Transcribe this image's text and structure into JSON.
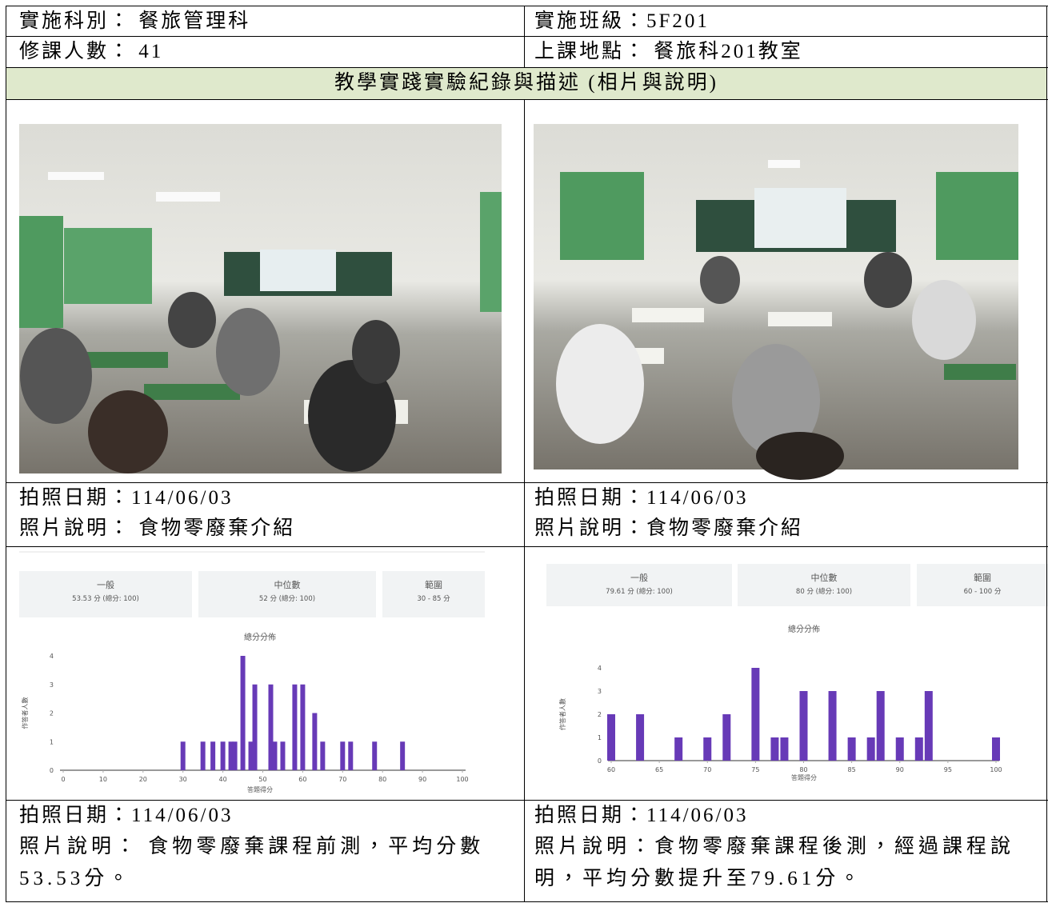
{
  "info": {
    "subject": "實施科別： 餐旅管理科",
    "class": "實施班級：5F201",
    "students": "修課人數： 41",
    "location": "上課地點： 餐旅科201教室"
  },
  "section_title": "教學實踐實驗紀錄與描述 (相片與說明)",
  "photos": [
    {
      "date": "拍照日期：114/06/03",
      "caption": "照片說明： 食物零廢棄介紹"
    },
    {
      "date": "拍照日期：114/06/03",
      "caption": "照片說明：食物零廢棄介紹"
    }
  ],
  "chart_captions": [
    {
      "date": "拍照日期：114/06/03",
      "caption": "照片說明： 食物零廢棄課程前測，平均分數53.53分。"
    },
    {
      "date": "拍照日期：114/06/03",
      "caption": "照片說明：食物零廢棄課程後測，經過課程說明，平均分數提升至79.61分。"
    }
  ],
  "chart_data": [
    {
      "type": "bar",
      "title": "總分分佈",
      "x_label": "答題得分",
      "y_label": "作答者人數",
      "stats": [
        {
          "label": "一般",
          "value": "53.53 分 (總分: 100)"
        },
        {
          "label": "中位數",
          "value": "52 分 (總分: 100)"
        },
        {
          "label": "範圍",
          "value": "30 - 85 分"
        }
      ],
      "x": [
        30,
        35,
        37.5,
        40,
        42,
        43,
        45,
        47,
        48,
        52,
        53,
        55,
        58,
        60,
        63,
        65,
        70,
        72,
        78,
        85
      ],
      "values": [
        1,
        1,
        1,
        1,
        1,
        1,
        4,
        1,
        3,
        3,
        1,
        1,
        3,
        3,
        2,
        1,
        1,
        1,
        1,
        1
      ],
      "color": "#673ab7",
      "xlim": [
        0,
        100
      ],
      "xticks": [
        0,
        10,
        20,
        30,
        40,
        50,
        60,
        70,
        80,
        90,
        100
      ],
      "ylim": [
        0,
        4
      ],
      "yticks": [
        0,
        1,
        2,
        3,
        4
      ],
      "grid": false
    },
    {
      "type": "bar",
      "title": "總分分佈",
      "x_label": "答題得分",
      "y_label": "作答者人數",
      "stats": [
        {
          "label": "一般",
          "value": "79.61 分 (總分: 100)"
        },
        {
          "label": "中位數",
          "value": "80 分 (總分: 100)"
        },
        {
          "label": "範圍",
          "value": "60 - 100 分"
        }
      ],
      "x": [
        60,
        63,
        67,
        70,
        72,
        75,
        77,
        78,
        80,
        83,
        85,
        87,
        88,
        90,
        92,
        93,
        100
      ],
      "values": [
        2,
        2,
        1,
        1,
        2,
        4,
        1,
        1,
        3,
        3,
        1,
        1,
        3,
        1,
        1,
        3,
        1
      ],
      "color": "#673ab7",
      "xlim": [
        60,
        100
      ],
      "xticks": [
        60,
        65,
        70,
        75,
        80,
        85,
        90,
        95,
        100
      ],
      "ylim": [
        0,
        4
      ],
      "yticks": [
        0,
        1,
        2,
        3,
        4
      ],
      "grid": false
    }
  ]
}
